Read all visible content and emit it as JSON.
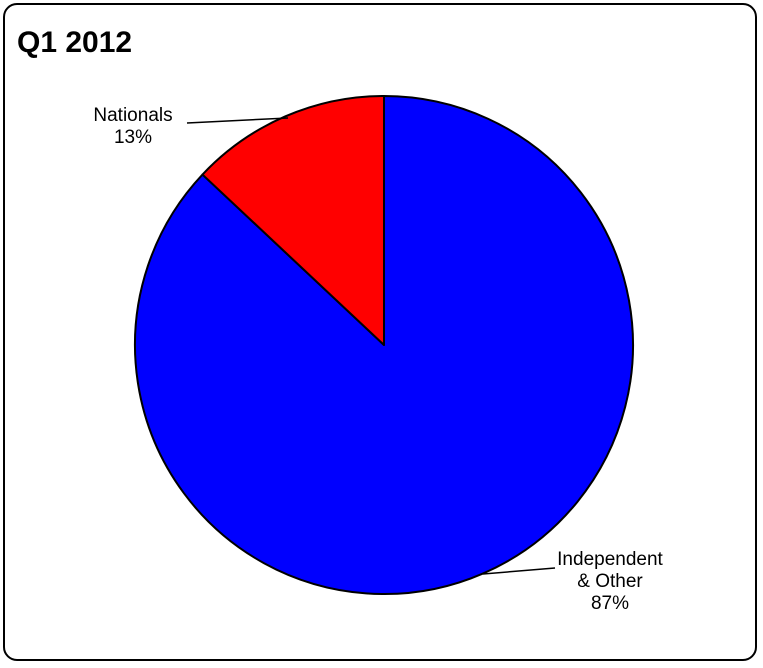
{
  "chart_data": {
    "type": "pie",
    "title": "Q1 2012",
    "start_angle_deg": 0,
    "direction": "clockwise",
    "slices": [
      {
        "label_lines": [
          "Independent",
          "& Other"
        ],
        "value": 87,
        "percent_label": "87%",
        "color": "#0000ff"
      },
      {
        "label_lines": [
          "Nationals"
        ],
        "value": 13,
        "percent_label": "13%",
        "color": "#ff0000"
      }
    ],
    "legend": "none"
  }
}
